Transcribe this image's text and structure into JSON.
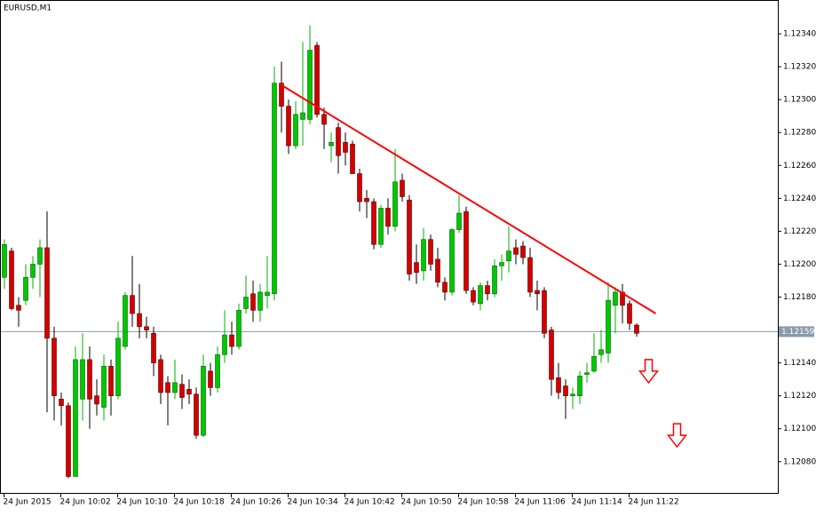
{
  "chart_data": {
    "type": "candlestick",
    "title": "EURUSD,M1",
    "categories": [
      "24 Jun 2015",
      null,
      null,
      null,
      null,
      null,
      null,
      null,
      "24 Jun 10:02",
      null,
      null,
      null,
      null,
      null,
      null,
      null,
      "24 Jun 10:10",
      null,
      null,
      null,
      null,
      null,
      null,
      null,
      "24 Jun 10:18",
      null,
      null,
      null,
      null,
      null,
      null,
      null,
      "24 Jun 10:26",
      null,
      null,
      null,
      null,
      null,
      null,
      null,
      "24 Jun 10:34",
      null,
      null,
      null,
      null,
      null,
      null,
      null,
      "24 Jun 10:42",
      null,
      null,
      null,
      null,
      null,
      null,
      null,
      "24 Jun 10:50",
      null,
      null,
      null,
      null,
      null,
      null,
      null,
      "24 Jun 10:58",
      null,
      null,
      null,
      null,
      null,
      null,
      null,
      "24 Jun 11:06",
      null,
      null,
      null,
      null,
      null,
      null,
      null,
      "24 Jun 11:14",
      null,
      null,
      null,
      null,
      null,
      null,
      null,
      "24 Jun 11:22",
      null
    ],
    "open": [
      1.12192,
      1.12208,
      1.12175,
      1.12178,
      1.12192,
      1.122,
      1.1221,
      1.12155,
      1.12118,
      1.12114,
      1.12071,
      1.12118,
      1.12142,
      1.1212,
      1.12113,
      1.12138,
      1.1212,
      1.1215,
      1.12181,
      1.1217,
      1.12162,
      1.12158,
      1.12142,
      1.12128,
      1.12122,
      1.12127,
      1.12124,
      1.12121,
      1.12096,
      1.12135,
      1.12125,
      1.12145,
      1.12157,
      1.1215,
      1.12173,
      1.12182,
      1.12172,
      1.12181,
      1.12182,
      1.1231,
      1.12296,
      1.12272,
      1.12288,
      1.12288,
      1.12333,
      1.12291,
      1.12272,
      1.12283,
      1.12274,
      1.12273,
      1.12255,
      1.1224,
      1.12238,
      1.12212,
      1.12234,
      1.12223,
      1.12251,
      1.12239,
      1.12201,
      1.12196,
      1.12215,
      1.12203,
      1.12189,
      1.12183,
      1.12221,
      1.12232,
      1.12184,
      1.12176,
      1.12187,
      1.12182,
      1.12199,
      1.12202,
      1.1221,
      1.12211,
      1.12204,
      1.12184,
      1.12184,
      1.1216,
      1.12131,
      1.12126,
      1.1212,
      1.1212,
      1.12133,
      1.12135,
      1.12145,
      1.12146,
      1.12175,
      1.12183,
      1.12176,
      1.12163
    ],
    "high": [
      1.12215,
      1.1221,
      1.1218,
      1.122,
      1.12205,
      1.12215,
      1.12232,
      1.12162,
      1.12122,
      1.12116,
      1.1215,
      1.12158,
      1.1215,
      1.1213,
      1.12145,
      1.12142,
      1.12165,
      1.12183,
      1.12205,
      1.12188,
      1.12168,
      1.12162,
      1.12145,
      1.12132,
      1.12142,
      1.12133,
      1.1213,
      1.12125,
      1.12145,
      1.1214,
      1.1215,
      1.12172,
      1.12165,
      1.12176,
      1.12193,
      1.1219,
      1.12188,
      1.12205,
      1.1232,
      1.12323,
      1.123,
      1.12299,
      1.12335,
      1.12345,
      1.12335,
      1.12295,
      1.1228,
      1.12286,
      1.1228,
      1.12275,
      1.12258,
      1.12245,
      1.1224,
      1.12236,
      1.1224,
      1.1227,
      1.12255,
      1.12242,
      1.12212,
      1.12222,
      1.12218,
      1.1221,
      1.12192,
      1.12222,
      1.12242,
      1.12235,
      1.12186,
      1.12189,
      1.1219,
      1.12203,
      1.12206,
      1.12223,
      1.12215,
      1.12214,
      1.1221,
      1.1219,
      1.12186,
      1.12162,
      1.1214,
      1.1213,
      1.12125,
      1.12135,
      1.1214,
      1.12158,
      1.1216,
      1.12189,
      1.12186,
      1.12188,
      1.12178,
      1.12164
    ],
    "low": [
      1.12185,
      1.12172,
      1.12162,
      1.12175,
      1.12185,
      1.1218,
      1.1211,
      1.12105,
      1.12102,
      1.1207,
      1.12071,
      1.12105,
      1.121,
      1.12108,
      1.12105,
      1.12108,
      1.12118,
      1.12148,
      1.12162,
      1.12155,
      1.12155,
      1.12132,
      1.12115,
      1.12102,
      1.12118,
      1.12112,
      1.12115,
      1.12094,
      1.12095,
      1.1212,
      1.12122,
      1.1214,
      1.12145,
      1.12148,
      1.1217,
      1.12165,
      1.12165,
      1.12173,
      1.12178,
      1.1228,
      1.12267,
      1.1227,
      1.12272,
      1.12285,
      1.12289,
      1.1227,
      1.12262,
      1.12255,
      1.1226,
      1.12255,
      1.12232,
      1.12228,
      1.12209,
      1.1221,
      1.12218,
      1.1222,
      1.12238,
      1.1219,
      1.12188,
      1.1219,
      1.12196,
      1.12186,
      1.12178,
      1.12181,
      1.12219,
      1.12182,
      1.12175,
      1.12172,
      1.12178,
      1.1218,
      1.1219,
      1.12195,
      1.122,
      1.122,
      1.1218,
      1.12172,
      1.12155,
      1.1212,
      1.12118,
      1.12106,
      1.12112,
      1.12115,
      1.12128,
      1.12134,
      1.1214,
      1.1214,
      1.12158,
      1.12164,
      1.1216,
      1.12156
    ],
    "close": [
      1.12212,
      1.12173,
      1.12172,
      1.12192,
      1.122,
      1.1221,
      1.12155,
      1.1212,
      1.12114,
      1.12071,
      1.12142,
      1.12142,
      1.12118,
      1.12115,
      1.12138,
      1.1212,
      1.12155,
      1.12181,
      1.1217,
      1.12162,
      1.1216,
      1.1214,
      1.12122,
      1.12122,
      1.12128,
      1.12119,
      1.12121,
      1.12096,
      1.12138,
      1.12125,
      1.12145,
      1.12157,
      1.1215,
      1.12172,
      1.1218,
      1.12172,
      1.12183,
      1.12183,
      1.1231,
      1.12296,
      1.12272,
      1.12291,
      1.12292,
      1.1233,
      1.12291,
      1.12285,
      1.12274,
      1.12266,
      1.12268,
      1.12255,
      1.12238,
      1.12238,
      1.12212,
      1.12234,
      1.12223,
      1.1225,
      1.12241,
      1.12194,
      1.12195,
      1.12215,
      1.122,
      1.12189,
      1.12183,
      1.12221,
      1.12231,
      1.12184,
      1.12177,
      1.12187,
      1.12182,
      1.12199,
      1.12201,
      1.12208,
      1.12206,
      1.12204,
      1.12183,
      1.12182,
      1.12158,
      1.1213,
      1.12122,
      1.1212,
      1.12121,
      1.12132,
      1.12134,
      1.12144,
      1.12148,
      1.12178,
      1.12183,
      1.12175,
      1.12164,
      1.12158
    ],
    "up_color": "#00c800",
    "down_color": "#d40000",
    "ylim": [
      1.12061,
      1.1236
    ],
    "yticks": [
      {
        "value": 1.1208,
        "label": "1.12080"
      },
      {
        "value": 1.121,
        "label": "1.12100"
      },
      {
        "value": 1.1212,
        "label": "1.12120"
      },
      {
        "value": 1.1214,
        "label": "1.12140"
      },
      1.12159,
      {
        "value": 1.1218,
        "label": "1.12180"
      },
      {
        "value": 1.122,
        "label": "1.12200"
      },
      {
        "value": 1.1222,
        "label": "1.12220"
      },
      {
        "value": 1.1224,
        "label": "1.12240"
      },
      {
        "value": 1.1226,
        "label": "1.12260"
      },
      {
        "value": 1.1228,
        "label": "1.12280"
      },
      {
        "value": 1.123,
        "label": "1.12300"
      },
      {
        "value": 1.1232,
        "label": "1.12320"
      },
      {
        "value": 1.1234,
        "label": "1.12340"
      }
    ],
    "current_price": 1.12159,
    "trendline": {
      "x": [
        39,
        91.75
      ],
      "y": [
        1.12309,
        1.1217
      ],
      "color": "#ff0000"
    },
    "arrows": {
      "x": [
        90.75,
        94.75
      ],
      "y": [
        1.12142,
        1.12103
      ],
      "color": "#ff0000"
    }
  }
}
